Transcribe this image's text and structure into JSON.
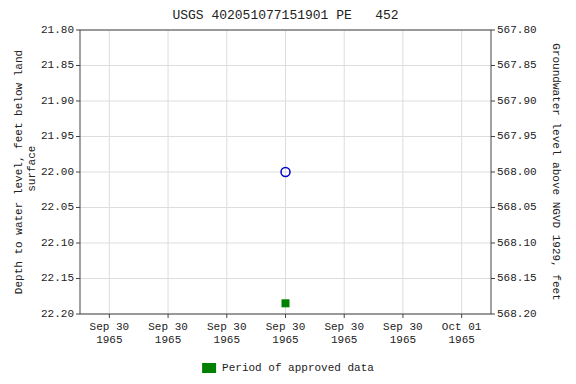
{
  "chart_data": {
    "type": "scatter",
    "title": "USGS 402051077151901 PE   452",
    "ylabel": "Depth to water level, feet below land\n surface",
    "y2label": "Groundwater level above NGVD 1929, feet",
    "categories": [
      "Sep 30\n1965",
      "Sep 30\n1965",
      "Sep 30\n1965",
      "Sep 30\n1965",
      "Sep 30\n1965",
      "Sep 30\n1965",
      "Oct 01\n1965"
    ],
    "series": [
      {
        "color": "#0000cc",
        "marker": "open-circle",
        "values": [
          null,
          null,
          null,
          22.0,
          null,
          null,
          null
        ]
      },
      {
        "name": "Period of approved data",
        "color": "#008000",
        "marker": "square",
        "values": [
          null,
          null,
          null,
          22.185,
          null,
          null,
          null
        ]
      }
    ],
    "ylim": [
      22.2,
      21.8
    ],
    "yticks": [
      {
        "value": 21.8,
        "label": "21.80"
      },
      {
        "value": 21.85,
        "label": "21.85"
      },
      {
        "value": 21.9,
        "label": "21.90"
      },
      {
        "value": 21.95,
        "label": "21.95"
      },
      {
        "value": 22.0,
        "label": "22.00"
      },
      {
        "value": 22.05,
        "label": "22.05"
      },
      {
        "value": 22.1,
        "label": "22.10"
      },
      {
        "value": 22.15,
        "label": "22.15"
      },
      {
        "value": 22.2,
        "label": "22.20"
      }
    ],
    "y2lim": [
      568.2,
      567.8
    ],
    "y2ticks": [
      {
        "value": 568.2,
        "label": "568.20"
      },
      {
        "value": 568.15,
        "label": "568.15"
      },
      {
        "value": 568.1,
        "label": "568.10"
      },
      {
        "value": 568.05,
        "label": "568.05"
      },
      {
        "value": 568.0,
        "label": "568.00"
      },
      {
        "value": 567.95,
        "label": "567.95"
      },
      {
        "value": 567.9,
        "label": "567.90"
      },
      {
        "value": 567.85,
        "label": "567.85"
      },
      {
        "value": 567.8,
        "label": "567.80"
      }
    ],
    "grid": true
  }
}
